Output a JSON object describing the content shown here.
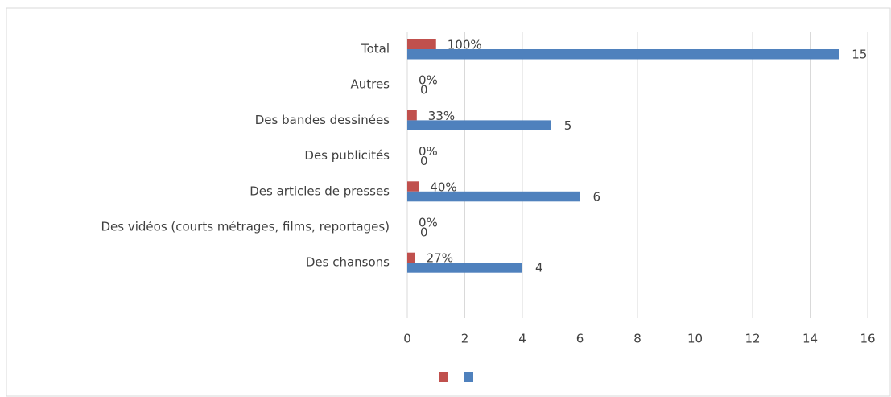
{
  "chart_data": {
    "type": "bar",
    "orientation": "horizontal",
    "categories": [
      "Total",
      "Autres",
      "Des bandes dessinées",
      "Des publicités",
      "Des articles de presses",
      "Des vidéos (courts métrages, films, reportages)",
      "Des chansons"
    ],
    "series": [
      {
        "color": "#c0504d",
        "values": [
          1,
          0,
          0.33,
          0,
          0.4,
          0,
          0.27
        ],
        "value_labels": [
          "100%",
          "0%",
          "33%",
          "0%",
          "40%",
          "0%",
          "27%"
        ]
      },
      {
        "color": "#4f81bd",
        "values": [
          15,
          0,
          5,
          0,
          6,
          0,
          4
        ]
      }
    ],
    "xlim": [
      0,
      16
    ],
    "xticks": [
      0,
      2,
      4,
      6,
      8,
      10,
      12,
      14,
      16
    ],
    "grid": true,
    "legend": "bottom"
  }
}
